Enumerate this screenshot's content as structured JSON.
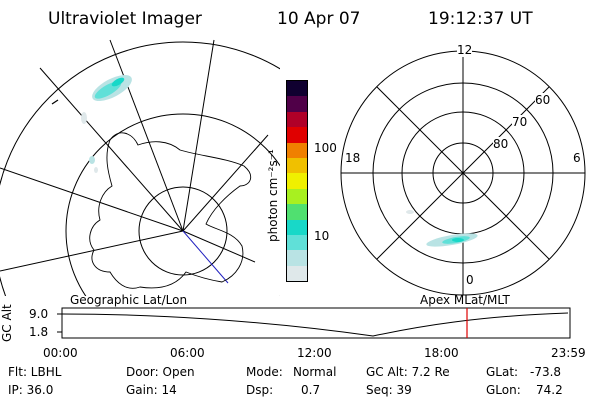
{
  "header": {
    "title": "Ultraviolet Imager",
    "date": "10 Apr 07",
    "time": "19:12:37 UT"
  },
  "colorbar": {
    "unit_label": "photon cm⁻²s⁻¹",
    "tick_100": "100",
    "tick_10": "10",
    "colors": [
      "#dfe8ea",
      "#b9e3e4",
      "#60e0d8",
      "#18d8c8",
      "#50e070",
      "#a8f020",
      "#f0f000",
      "#f0c000",
      "#f08000",
      "#e00000",
      "#b00028",
      "#500048",
      "#100030"
    ]
  },
  "polar": {
    "label_12": "12",
    "label_6": "6",
    "label_18": "18",
    "label_0": "0",
    "lat_60": "60",
    "lat_70": "70",
    "lat_80": "80"
  },
  "altitude_strip": {
    "left_title": "Geographic Lat/Lon",
    "right_title": "Apex MLat/MLT",
    "axis_label": "GC Alt",
    "y_max": "9.0",
    "y_min": "1.8",
    "time_ticks": [
      "00:00",
      "06:00",
      "12:00",
      "18:00",
      "23:59"
    ],
    "marker_color": "#e00000"
  },
  "info": {
    "filter": "Flt: LBHL",
    "door": "Door: Open",
    "mode_label": "Mode:",
    "mode_value": "Normal",
    "gc_alt": "GC Alt: 7.2 Re",
    "glat_label": "GLat:",
    "glat_value": "-73.8",
    "ip": "IP: 36.0",
    "gain": "Gain: 14",
    "dsp_label": "Dsp:",
    "dsp_value": "0.7",
    "seq": "Seq: 39",
    "glon_label": "GLon:",
    "glon_value": "74.2"
  }
}
